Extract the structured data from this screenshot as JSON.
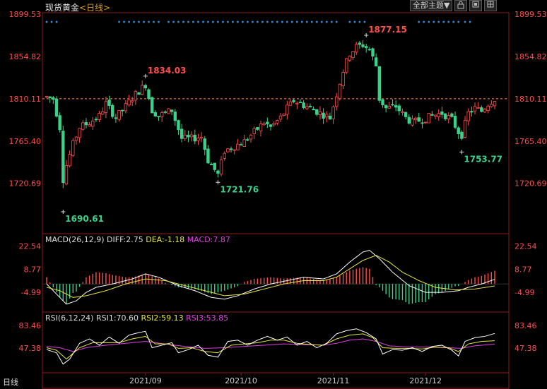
{
  "header": {
    "title": "现货黄金",
    "period": "<日线>",
    "theme_button": "全部主题▼",
    "icons": [
      "lock-icon",
      "fullscreen-icon",
      "grid-icon"
    ]
  },
  "corner_label": "日线",
  "colors": {
    "up": "#ff4d4d",
    "down": "#3bd18a",
    "dif": "#ffffff",
    "dea": "#e8e840",
    "macd": "#e040e0",
    "rsi1": "#ffffff",
    "rsi2": "#e8e840",
    "rsi3": "#e040e0",
    "axis": "#ff4d4d",
    "ref": "#ff8c5a",
    "dots": "#3a8fd8"
  },
  "chart_data": {
    "type": "candlestick",
    "price_axis": {
      "ticks": [
        "1899.53",
        "1854.82",
        "1810.11",
        "1765.40",
        "1720.69"
      ],
      "ylim": [
        1690.61,
        1899.53
      ],
      "ref_line": 1810.11
    },
    "x_ticks": [
      {
        "label": "2021/09",
        "index": 30
      },
      {
        "label": "2021/10",
        "index": 59
      },
      {
        "label": "2021/11",
        "index": 87
      },
      {
        "label": "2021/12",
        "index": 115
      }
    ],
    "annotations": [
      {
        "label": "1834.03",
        "index": 30,
        "value": 1834.03
      },
      {
        "label": "1877.15",
        "index": 97,
        "value": 1877.15
      },
      {
        "label": "1690.61",
        "index": 5,
        "value": 1690.61
      },
      {
        "label": "1721.76",
        "index": 52,
        "value": 1721.76
      },
      {
        "label": "1753.77",
        "index": 126,
        "value": 1753.77
      }
    ],
    "waypoints": [
      [
        0,
        1812
      ],
      [
        2,
        1810
      ],
      [
        4,
        1780
      ],
      [
        5,
        1725
      ],
      [
        6,
        1740
      ],
      [
        8,
        1762
      ],
      [
        10,
        1780
      ],
      [
        13,
        1785
      ],
      [
        16,
        1792
      ],
      [
        18,
        1805
      ],
      [
        21,
        1790
      ],
      [
        24,
        1802
      ],
      [
        27,
        1815
      ],
      [
        30,
        1825
      ],
      [
        32,
        1798
      ],
      [
        34,
        1792
      ],
      [
        36,
        1795
      ],
      [
        38,
        1798
      ],
      [
        41,
        1768
      ],
      [
        44,
        1768
      ],
      [
        47,
        1770
      ],
      [
        49,
        1745
      ],
      [
        51,
        1735
      ],
      [
        52,
        1730
      ],
      [
        54,
        1755
      ],
      [
        57,
        1760
      ],
      [
        60,
        1765
      ],
      [
        63,
        1775
      ],
      [
        66,
        1785
      ],
      [
        68,
        1780
      ],
      [
        71,
        1790
      ],
      [
        73,
        1800
      ],
      [
        75,
        1808
      ],
      [
        77,
        1805
      ],
      [
        80,
        1800
      ],
      [
        83,
        1795
      ],
      [
        86,
        1790
      ],
      [
        88,
        1815
      ],
      [
        90,
        1840
      ],
      [
        92,
        1858
      ],
      [
        94,
        1865
      ],
      [
        96,
        1867
      ],
      [
        98,
        1862
      ],
      [
        100,
        1845
      ],
      [
        101,
        1810
      ],
      [
        103,
        1800
      ],
      [
        106,
        1802
      ],
      [
        109,
        1790
      ],
      [
        111,
        1785
      ],
      [
        114,
        1788
      ],
      [
        117,
        1792
      ],
      [
        120,
        1795
      ],
      [
        123,
        1788
      ],
      [
        125,
        1775
      ],
      [
        126,
        1772
      ],
      [
        128,
        1795
      ],
      [
        130,
        1800
      ],
      [
        132,
        1797
      ],
      [
        134,
        1805
      ],
      [
        136,
        1810
      ]
    ],
    "dots_row": [
      [
        0,
        3
      ],
      [
        22,
        34
      ],
      [
        37,
        88
      ],
      [
        92,
        97
      ],
      [
        113,
        125
      ],
      [
        127,
        129
      ]
    ]
  },
  "macd": {
    "label": "MACD(26,12,9)",
    "dif": "DIFF:2.75",
    "dea": "DEA:-1.18",
    "macd": "MACD:7.87",
    "ticks": [
      "22.54",
      "8.77",
      "-4.99"
    ],
    "ylim": [
      -15,
      24
    ],
    "dif_waypoints": [
      [
        0,
        0
      ],
      [
        3,
        -6
      ],
      [
        6,
        -12
      ],
      [
        9,
        -10
      ],
      [
        12,
        -5
      ],
      [
        15,
        -2
      ],
      [
        20,
        0
      ],
      [
        26,
        3
      ],
      [
        30,
        6
      ],
      [
        34,
        4
      ],
      [
        40,
        -1
      ],
      [
        45,
        -4
      ],
      [
        50,
        -8
      ],
      [
        54,
        -9
      ],
      [
        58,
        -7
      ],
      [
        63,
        -3
      ],
      [
        68,
        0
      ],
      [
        73,
        2
      ],
      [
        78,
        4
      ],
      [
        84,
        3
      ],
      [
        88,
        6
      ],
      [
        92,
        13
      ],
      [
        96,
        19
      ],
      [
        98,
        20
      ],
      [
        101,
        15
      ],
      [
        105,
        7
      ],
      [
        110,
        -1
      ],
      [
        115,
        -5
      ],
      [
        120,
        -5
      ],
      [
        125,
        -4
      ],
      [
        128,
        -2
      ],
      [
        132,
        0
      ],
      [
        136,
        2.75
      ]
    ],
    "dea_waypoints": [
      [
        0,
        -2
      ],
      [
        4,
        -4
      ],
      [
        8,
        -8
      ],
      [
        12,
        -7
      ],
      [
        18,
        -4
      ],
      [
        24,
        0
      ],
      [
        30,
        3
      ],
      [
        36,
        2
      ],
      [
        42,
        -1
      ],
      [
        48,
        -4
      ],
      [
        54,
        -7
      ],
      [
        60,
        -6
      ],
      [
        66,
        -3
      ],
      [
        72,
        0
      ],
      [
        78,
        2
      ],
      [
        84,
        2
      ],
      [
        88,
        4
      ],
      [
        92,
        9
      ],
      [
        96,
        14
      ],
      [
        100,
        17
      ],
      [
        104,
        13
      ],
      [
        108,
        7
      ],
      [
        113,
        2
      ],
      [
        118,
        -2
      ],
      [
        124,
        -3.5
      ],
      [
        130,
        -3
      ],
      [
        136,
        -1.18
      ]
    ]
  },
  "rsi": {
    "label": "RSI(6,12,24)",
    "rsi1": "RSI1:70.60",
    "rsi2": "RSI2:59.13",
    "rsi3": "RSI3:53.85",
    "ticks": [
      "83.46",
      "47.38"
    ],
    "ylim": [
      15,
      90
    ],
    "rsi1_waypoints": [
      [
        0,
        45
      ],
      [
        3,
        40
      ],
      [
        5,
        22
      ],
      [
        7,
        30
      ],
      [
        10,
        55
      ],
      [
        13,
        62
      ],
      [
        16,
        52
      ],
      [
        19,
        65
      ],
      [
        22,
        55
      ],
      [
        25,
        68
      ],
      [
        28,
        72
      ],
      [
        30,
        74
      ],
      [
        32,
        48
      ],
      [
        35,
        52
      ],
      [
        38,
        56
      ],
      [
        40,
        40
      ],
      [
        43,
        45
      ],
      [
        46,
        52
      ],
      [
        49,
        36
      ],
      [
        52,
        33
      ],
      [
        55,
        58
      ],
      [
        58,
        60
      ],
      [
        61,
        52
      ],
      [
        64,
        60
      ],
      [
        67,
        66
      ],
      [
        70,
        60
      ],
      [
        73,
        65
      ],
      [
        76,
        52
      ],
      [
        79,
        58
      ],
      [
        82,
        48
      ],
      [
        85,
        55
      ],
      [
        88,
        70
      ],
      [
        91,
        75
      ],
      [
        94,
        78
      ],
      [
        97,
        72
      ],
      [
        100,
        62
      ],
      [
        102,
        38
      ],
      [
        105,
        45
      ],
      [
        108,
        44
      ],
      [
        111,
        48
      ],
      [
        114,
        42
      ],
      [
        117,
        50
      ],
      [
        120,
        52
      ],
      [
        123,
        44
      ],
      [
        125,
        35
      ],
      [
        127,
        58
      ],
      [
        130,
        64
      ],
      [
        133,
        66
      ],
      [
        136,
        70.6
      ]
    ],
    "rsi2_waypoints": [
      [
        0,
        48
      ],
      [
        3,
        44
      ],
      [
        6,
        30
      ],
      [
        10,
        48
      ],
      [
        14,
        56
      ],
      [
        18,
        56
      ],
      [
        22,
        56
      ],
      [
        26,
        62
      ],
      [
        30,
        66
      ],
      [
        33,
        54
      ],
      [
        37,
        54
      ],
      [
        40,
        47
      ],
      [
        44,
        48
      ],
      [
        48,
        42
      ],
      [
        52,
        40
      ],
      [
        56,
        52
      ],
      [
        60,
        54
      ],
      [
        64,
        56
      ],
      [
        68,
        60
      ],
      [
        72,
        60
      ],
      [
        76,
        55
      ],
      [
        80,
        53
      ],
      [
        84,
        52
      ],
      [
        88,
        62
      ],
      [
        92,
        68
      ],
      [
        96,
        70
      ],
      [
        99,
        64
      ],
      [
        102,
        48
      ],
      [
        106,
        47
      ],
      [
        110,
        47
      ],
      [
        114,
        46
      ],
      [
        118,
        49
      ],
      [
        122,
        48
      ],
      [
        125,
        42
      ],
      [
        128,
        54
      ],
      [
        132,
        58
      ],
      [
        136,
        59.13
      ]
    ],
    "rsi3_waypoints": [
      [
        0,
        50
      ],
      [
        4,
        48
      ],
      [
        8,
        42
      ],
      [
        12,
        48
      ],
      [
        18,
        52
      ],
      [
        24,
        55
      ],
      [
        30,
        58
      ],
      [
        36,
        54
      ],
      [
        42,
        50
      ],
      [
        48,
        47
      ],
      [
        54,
        48
      ],
      [
        60,
        50
      ],
      [
        66,
        52
      ],
      [
        72,
        54
      ],
      [
        78,
        53
      ],
      [
        84,
        52
      ],
      [
        88,
        55
      ],
      [
        92,
        60
      ],
      [
        96,
        62
      ],
      [
        100,
        58
      ],
      [
        104,
        51
      ],
      [
        110,
        49
      ],
      [
        116,
        49
      ],
      [
        122,
        48
      ],
      [
        126,
        47
      ],
      [
        130,
        51
      ],
      [
        136,
        53.85
      ]
    ]
  }
}
